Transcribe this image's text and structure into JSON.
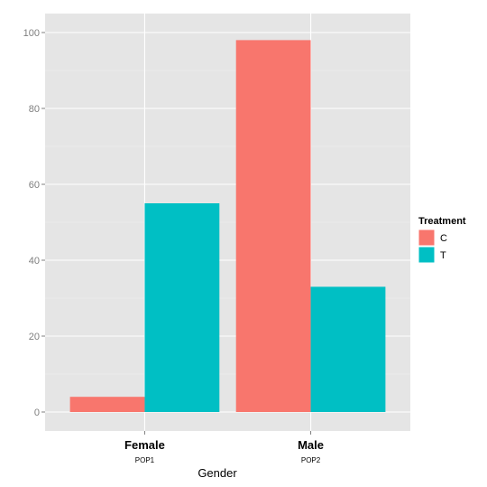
{
  "chart_data": {
    "type": "bar",
    "title": "",
    "xlabel": "Gender",
    "ylabel": "",
    "categories": [
      "Female",
      "Male"
    ],
    "category_sublabels": [
      "POP1",
      "POP2"
    ],
    "series": [
      {
        "name": "C",
        "color": "#F8766D",
        "values": [
          4,
          98
        ]
      },
      {
        "name": "T",
        "color": "#00BFC4",
        "values": [
          55,
          33
        ]
      }
    ],
    "ylim": [
      -5,
      105
    ],
    "yticks": [
      0,
      20,
      40,
      60,
      80,
      100
    ],
    "grid": true,
    "legend": {
      "title": "Treatment",
      "position": "right"
    },
    "panel_background": "#E5E5E5",
    "grid_color": "#FFFFFF"
  }
}
